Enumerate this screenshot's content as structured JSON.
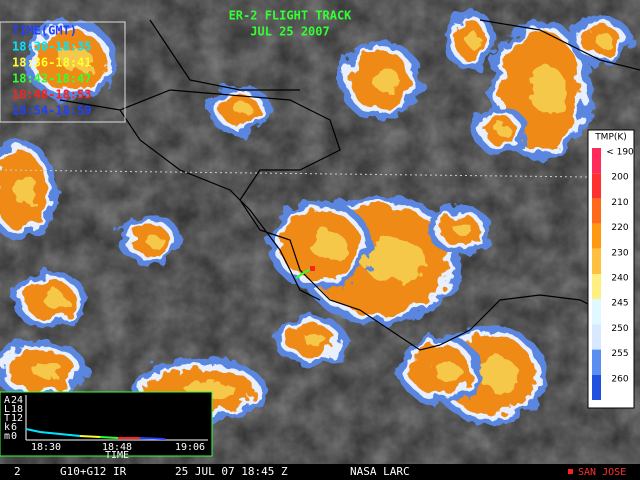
{
  "header": {
    "title": "ER-2 FLIGHT TRACK",
    "date": "JUL 25 2007"
  },
  "legend": {
    "title": "TIME(GMT)",
    "entries": [
      {
        "label": "18:30-18:35",
        "color": "#00e5ff"
      },
      {
        "label": "18:36-18:41",
        "color": "#ffff33"
      },
      {
        "label": "18:42-18:47",
        "color": "#33ff33"
      },
      {
        "label": "18:48-18:53",
        "color": "#ff2020"
      },
      {
        "label": "18:54-18:59",
        "color": "#2040ff"
      }
    ]
  },
  "colorbar": {
    "title": "TMP(K)",
    "labels": [
      "< 190",
      "200",
      "210",
      "220",
      "230",
      "240",
      "245",
      "250",
      "255",
      "260"
    ]
  },
  "inset": {
    "axis_letters": [
      "A",
      "L",
      "T",
      "k",
      "m"
    ],
    "yticks": [
      "24",
      "18",
      "12",
      "6",
      "0"
    ],
    "xticks": [
      "18:30",
      "18:48",
      "19:06"
    ],
    "xlabel": "TIME"
  },
  "footer": {
    "frame": "2",
    "satellite": "G10+G12 IR",
    "time": "25 JUL 07 18:45 Z",
    "source": "NASA LARC",
    "site": "SAN JOSE"
  }
}
